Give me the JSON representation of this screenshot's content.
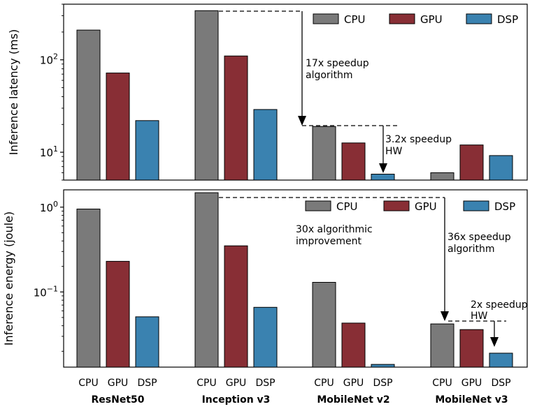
{
  "colors": {
    "CPU": "#7a7a7a",
    "GPU": "#882e35",
    "DSP": "#3a82b0",
    "edge": "#000000"
  },
  "groups": [
    "ResNet50",
    "Inception v3",
    "MobileNet v2",
    "MobileNet v3"
  ],
  "devices": [
    "CPU",
    "GPU",
    "DSP"
  ],
  "chart_data": [
    {
      "type": "bar",
      "ylabel": "Inference latency (ms)",
      "yscale": "log",
      "ylim": [
        5,
        400
      ],
      "yticks": [
        {
          "value": 10,
          "base": "10",
          "exp": "1"
        },
        {
          "value": 100,
          "base": "10",
          "exp": "2"
        }
      ],
      "legend": [
        "CPU",
        "GPU",
        "DSP"
      ],
      "legend_loc": "top-right",
      "categories": [
        "ResNet50",
        "Inception v3",
        "MobileNet v2",
        "MobileNet v3"
      ],
      "series": [
        {
          "name": "CPU",
          "values": [
            210,
            340,
            19,
            6
          ]
        },
        {
          "name": "GPU",
          "values": [
            72,
            110,
            12.6,
            12
          ]
        },
        {
          "name": "DSP",
          "values": [
            22,
            29,
            5.8,
            9.2
          ]
        }
      ],
      "annotations": [
        {
          "line1": "17x speedup",
          "line2": "algorithm"
        },
        {
          "line1": "3.2x speedup",
          "line2": "HW"
        }
      ]
    },
    {
      "type": "bar",
      "ylabel": "Inference energy (joule)",
      "yscale": "log",
      "ylim": [
        0.013,
        1.6
      ],
      "yticks": [
        {
          "value": 0.1,
          "base": "10",
          "exp": "−1"
        },
        {
          "value": 1,
          "base": "10",
          "exp": "0"
        }
      ],
      "legend": [
        "CPU",
        "GPU",
        "DSP"
      ],
      "legend_loc": "top-right",
      "categories": [
        "ResNet50",
        "Inception v3",
        "MobileNet v2",
        "MobileNet v3"
      ],
      "series": [
        {
          "name": "CPU",
          "values": [
            0.95,
            1.48,
            0.13,
            0.042
          ]
        },
        {
          "name": "GPU",
          "values": [
            0.23,
            0.35,
            0.043,
            0.036
          ]
        },
        {
          "name": "DSP",
          "values": [
            0.051,
            0.066,
            0.014,
            0.019
          ]
        }
      ],
      "annotations": [
        {
          "line1": "30x algorithmic",
          "line2": "improvement"
        },
        {
          "line1": "36x speedup",
          "line2": "algorithm"
        },
        {
          "line1": "2x speedup",
          "line2": "HW"
        }
      ]
    }
  ]
}
